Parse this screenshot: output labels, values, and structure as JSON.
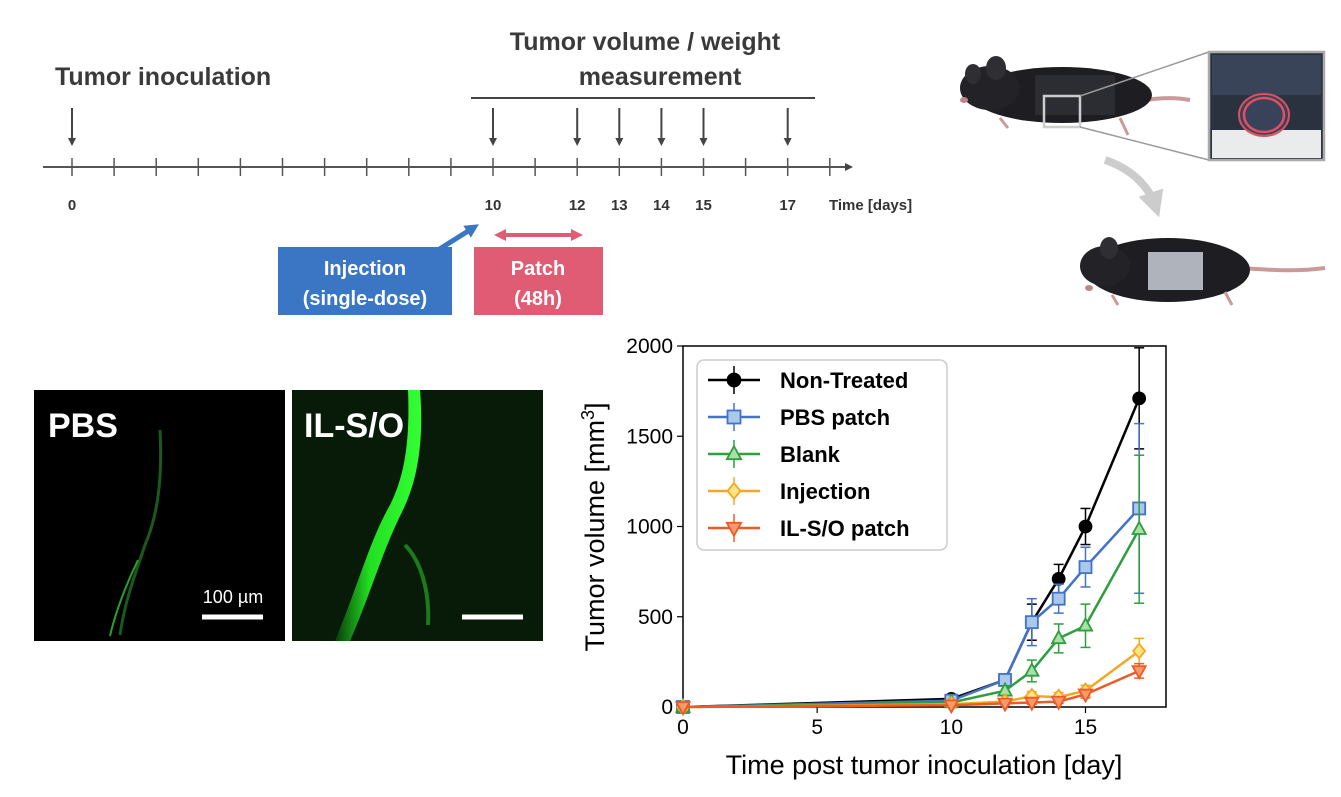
{
  "timeline": {
    "inoculation_label": "Tumor inoculation",
    "measurement_label_line1": "Tumor volume / weight",
    "measurement_label_line2": "measurement",
    "axis_label": "Time [days]",
    "tick_count": 19,
    "tick_labels": [
      {
        "day": 0,
        "text": "0"
      },
      {
        "day": 10,
        "text": "10"
      },
      {
        "day": 12,
        "text": "12"
      },
      {
        "day": 13,
        "text": "13"
      },
      {
        "day": 14,
        "text": "14"
      },
      {
        "day": 15,
        "text": "15"
      },
      {
        "day": 17,
        "text": "17"
      }
    ],
    "measurement_days": [
      10,
      12,
      13,
      14,
      15,
      17
    ],
    "injection_box": {
      "line1": "Injection",
      "line2": "(single-dose)",
      "color": "#3a76c4"
    },
    "patch_box": {
      "line1": "Patch",
      "line2": "(48h)",
      "color": "#e05c74"
    }
  },
  "micrographs": {
    "panels": [
      {
        "label": "PBS",
        "scale_text": "100 µm"
      },
      {
        "label": "IL-S/O",
        "scale_text": ""
      }
    ],
    "fluorescence_color": "#22e022"
  },
  "illustration": {
    "mouse_color": "#1e1e22",
    "tumor_ring_color": "#e05060"
  },
  "chart_data": {
    "type": "line",
    "xlabel": "Time post tumor inoculation [day]",
    "ylabel": "Tumor volume [mm",
    "ylabel_superscript": "3",
    "ylabel_suffix": "]",
    "xlim": [
      0,
      18
    ],
    "ylim": [
      0,
      2000
    ],
    "xticks": [
      0,
      5,
      10,
      15
    ],
    "yticks": [
      0,
      500,
      1000,
      1500,
      2000
    ],
    "legend_position": "top-left",
    "grid": false,
    "x": [
      0,
      10,
      12,
      13,
      14,
      15,
      17
    ],
    "series": [
      {
        "name": "Non-Treated",
        "color": "#000000",
        "fill": "#000000",
        "marker": "circle",
        "values": [
          0,
          45,
          150,
          470,
          710,
          1000,
          1710
        ],
        "errors": [
          0,
          10,
          25,
          100,
          80,
          100,
          280
        ]
      },
      {
        "name": "PBS patch",
        "color": "#4472c4",
        "fill": "#aac8ec",
        "marker": "square",
        "values": [
          0,
          35,
          150,
          470,
          600,
          775,
          1100
        ],
        "errors": [
          0,
          10,
          25,
          130,
          80,
          110,
          470
        ]
      },
      {
        "name": "Blank",
        "color": "#2e9e3e",
        "fill": "#a8e0a8",
        "marker": "triangle-up",
        "values": [
          0,
          25,
          90,
          200,
          380,
          450,
          985
        ],
        "errors": [
          0,
          8,
          25,
          60,
          80,
          120,
          410
        ]
      },
      {
        "name": "Injection",
        "color": "#f5a623",
        "fill": "#ffe680",
        "marker": "diamond",
        "values": [
          0,
          15,
          30,
          60,
          55,
          90,
          310
        ],
        "errors": [
          0,
          5,
          10,
          25,
          25,
          30,
          70
        ]
      },
      {
        "name": "IL-S/O patch",
        "color": "#ee5a24",
        "fill": "#f79a6a",
        "marker": "triangle-down",
        "values": [
          0,
          10,
          20,
          25,
          30,
          70,
          200
        ],
        "errors": [
          0,
          5,
          8,
          10,
          10,
          20,
          40
        ]
      }
    ]
  }
}
